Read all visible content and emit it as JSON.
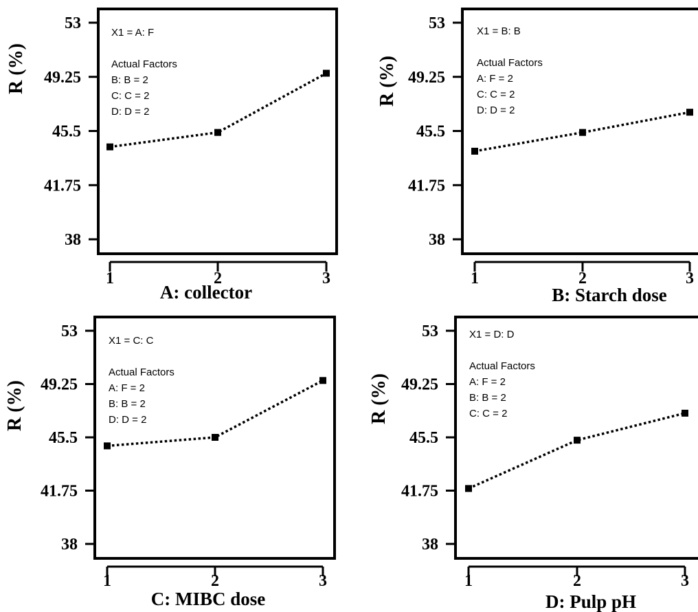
{
  "chart_data": [
    {
      "type": "line",
      "xlabel": "A: collector",
      "ylabel": "R (%)",
      "x": [
        1,
        2,
        3
      ],
      "values": [
        44.4,
        45.4,
        49.5
      ],
      "xticks": [
        "1",
        "2",
        "3"
      ],
      "yticks": [
        "38",
        "41.75",
        "45.5",
        "49.25",
        "53"
      ],
      "ylim": [
        38,
        53
      ],
      "xlim": [
        1,
        3
      ],
      "annotation": {
        "x1_label": "X1 = A: F",
        "factors_title": "Actual Factors",
        "factors": [
          "B: B = 2",
          "C: C = 2",
          "D: D = 2"
        ]
      }
    },
    {
      "type": "line",
      "xlabel": "B: Starch dose",
      "ylabel": "R (%)",
      "x": [
        1,
        2,
        3
      ],
      "values": [
        44.1,
        45.4,
        46.8
      ],
      "xticks": [
        "1",
        "2",
        "3"
      ],
      "yticks": [
        "38",
        "41.75",
        "45.5",
        "49.25",
        "53"
      ],
      "ylim": [
        38,
        53
      ],
      "xlim": [
        1,
        3
      ],
      "annotation": {
        "x1_label": "X1 = B: B",
        "factors_title": "Actual Factors",
        "factors": [
          "A: F = 2",
          "C: C = 2",
          "D: D = 2"
        ]
      }
    },
    {
      "type": "line",
      "xlabel": "C: MIBC dose",
      "ylabel": "R (%)",
      "x": [
        1,
        2,
        3
      ],
      "values": [
        44.9,
        45.5,
        49.5
      ],
      "xticks": [
        "1",
        "2",
        "3"
      ],
      "yticks": [
        "38",
        "41.75",
        "45.5",
        "49.25",
        "53"
      ],
      "ylim": [
        38,
        53
      ],
      "xlim": [
        1,
        3
      ],
      "annotation": {
        "x1_label": "X1 = C: C",
        "factors_title": "Actual Factors",
        "factors": [
          "A: F = 2",
          "B: B = 2",
          "D: D = 2"
        ]
      }
    },
    {
      "type": "line",
      "xlabel": "D: Pulp pH",
      "ylabel": "R (%)",
      "x": [
        1,
        2,
        3
      ],
      "values": [
        41.9,
        45.3,
        47.2
      ],
      "xticks": [
        "1",
        "2",
        "3"
      ],
      "yticks": [
        "38",
        "41.75",
        "45.5",
        "49.25",
        "53"
      ],
      "ylim": [
        38,
        53
      ],
      "xlim": [
        1,
        3
      ],
      "annotation": {
        "x1_label": "X1 = D: D",
        "factors_title": "Actual Factors",
        "factors": [
          "A: F = 2",
          "B: B = 2",
          "C: C = 2"
        ]
      }
    }
  ]
}
